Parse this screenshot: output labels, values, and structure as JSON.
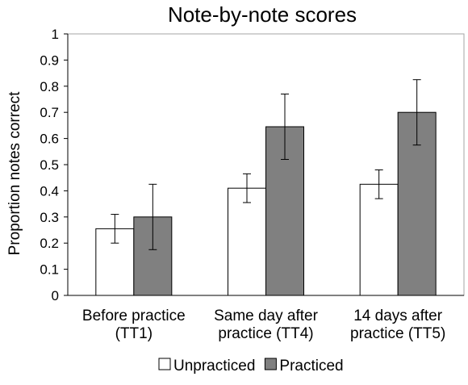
{
  "chart_data": {
    "type": "bar",
    "title": "Note-by-note scores",
    "xlabel": "",
    "ylabel": "Proportion notes correct",
    "ylim": [
      0,
      1
    ],
    "yticks": [
      "0",
      "0.1",
      "0.2",
      "0.3",
      "0.4",
      "0.5",
      "0.6",
      "0.7",
      "0.8",
      "0.9",
      "1"
    ],
    "grid": false,
    "legend_position": "bottom",
    "categories": [
      [
        "Before practice",
        "(TT1)"
      ],
      [
        "Same day after",
        "practice (TT4)"
      ],
      [
        "14 days after",
        "practice (TT5)"
      ]
    ],
    "series": [
      {
        "name": "Unpracticed",
        "color": "#ffffff",
        "values": [
          0.255,
          0.41,
          0.425
        ],
        "errors": [
          0.055,
          0.055,
          0.055
        ]
      },
      {
        "name": "Practiced",
        "color": "#808080",
        "values": [
          0.3,
          0.645,
          0.7
        ],
        "errors": [
          0.125,
          0.125,
          0.125
        ]
      }
    ]
  }
}
